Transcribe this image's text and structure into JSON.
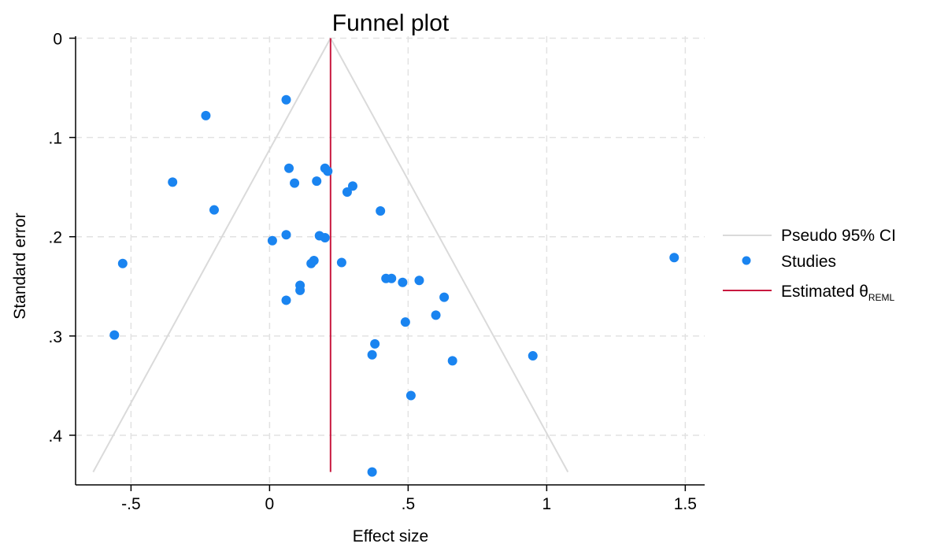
{
  "chart_data": {
    "type": "scatter",
    "title": "Funnel plot",
    "xlabel": "Effect size",
    "ylabel": "Standard error",
    "xlim": [
      -0.7,
      1.57
    ],
    "ylim": [
      0.45,
      -0.002
    ],
    "y_reversed": true,
    "x_ticks": [
      -0.5,
      0,
      0.5,
      1,
      1.5
    ],
    "x_tick_labels": [
      "-.5",
      "0",
      ".5",
      "1",
      "1.5"
    ],
    "y_ticks": [
      0,
      0.1,
      0.2,
      0.3,
      0.4
    ],
    "y_tick_labels": [
      "0",
      ".1",
      ".2",
      ".3",
      ".4"
    ],
    "grid": true,
    "legend_position": "right",
    "estimate": 0.22,
    "se_max": 0.437,
    "colors": {
      "studies": "#1a84f0",
      "estimate": "#c8183f",
      "ci": "#dadada",
      "grid": "#e2e2e2"
    },
    "legend": {
      "ci_label": "Pseudo 95% CI",
      "studies_label": "Studies",
      "estimate_label": "Estimated θ",
      "estimate_sub": "REML"
    },
    "series": [
      {
        "name": "Studies",
        "points": [
          [
            0.06,
            0.062
          ],
          [
            -0.23,
            0.078
          ],
          [
            0.2,
            0.131
          ],
          [
            0.07,
            0.131
          ],
          [
            0.21,
            0.134
          ],
          [
            -0.35,
            0.145
          ],
          [
            0.09,
            0.146
          ],
          [
            0.17,
            0.144
          ],
          [
            0.3,
            0.149
          ],
          [
            0.28,
            0.155
          ],
          [
            -0.2,
            0.173
          ],
          [
            0.4,
            0.174
          ],
          [
            0.06,
            0.198
          ],
          [
            0.18,
            0.199
          ],
          [
            0.2,
            0.201
          ],
          [
            0.01,
            0.204
          ],
          [
            1.46,
            0.221
          ],
          [
            -0.53,
            0.227
          ],
          [
            0.16,
            0.224
          ],
          [
            0.15,
            0.227
          ],
          [
            0.26,
            0.226
          ],
          [
            0.42,
            0.242
          ],
          [
            0.44,
            0.242
          ],
          [
            0.48,
            0.246
          ],
          [
            0.54,
            0.244
          ],
          [
            0.11,
            0.249
          ],
          [
            0.11,
            0.254
          ],
          [
            0.06,
            0.264
          ],
          [
            0.63,
            0.261
          ],
          [
            0.6,
            0.279
          ],
          [
            0.49,
            0.286
          ],
          [
            -0.56,
            0.299
          ],
          [
            0.38,
            0.308
          ],
          [
            0.37,
            0.319
          ],
          [
            0.95,
            0.32
          ],
          [
            0.66,
            0.325
          ],
          [
            0.51,
            0.36
          ],
          [
            0.37,
            0.437
          ]
        ]
      }
    ]
  }
}
